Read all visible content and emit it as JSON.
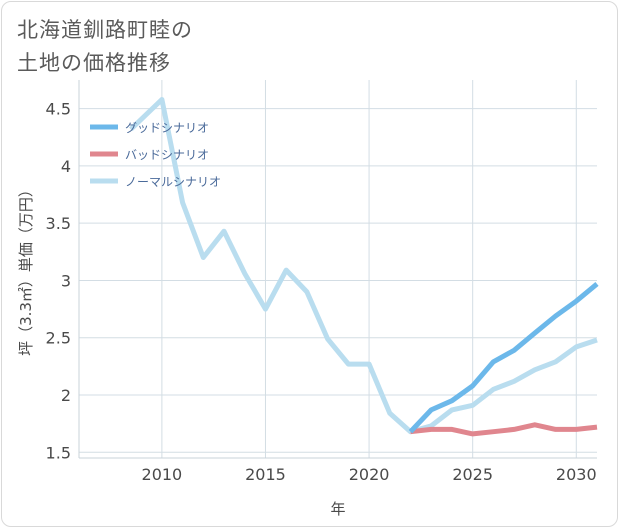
{
  "title_line1": "北海道釧路町睦の",
  "title_line2": "土地の価格推移",
  "chart_data": {
    "type": "line",
    "xlabel": "年",
    "ylabel": "坪（3.3㎡）単価（万円）",
    "xlim": [
      2006,
      2031
    ],
    "ylim": [
      1.45,
      4.75
    ],
    "xticks": [
      2010,
      2015,
      2020,
      2025,
      2030
    ],
    "yticks": [
      1.5,
      2,
      2.5,
      3,
      3.5,
      4,
      4.5
    ],
    "ytick_labels": [
      "1.5",
      "2",
      "2.5",
      "3",
      "3.5",
      "4",
      "4.5"
    ],
    "grid": true,
    "legend_position": "top-left",
    "series": [
      {
        "name": "グッドシナリオ",
        "color": "#6cb8ea",
        "x": [
          2022,
          2023,
          2024,
          2025,
          2026,
          2027,
          2028,
          2029,
          2030,
          2031
        ],
        "y": [
          1.68,
          1.87,
          1.95,
          2.08,
          2.29,
          2.39,
          2.54,
          2.69,
          2.82,
          2.97
        ]
      },
      {
        "name": "バッドシナリオ",
        "color": "#e0868e",
        "x": [
          2022,
          2023,
          2024,
          2025,
          2026,
          2027,
          2028,
          2029,
          2030,
          2031
        ],
        "y": [
          1.68,
          1.7,
          1.7,
          1.66,
          1.68,
          1.7,
          1.74,
          1.7,
          1.7,
          1.72
        ]
      },
      {
        "name": "ノーマルシナリオ",
        "color": "#b9ddef",
        "x": [
          2008.5,
          2010,
          2011,
          2012,
          2013,
          2014,
          2015,
          2016,
          2017,
          2018,
          2019,
          2020,
          2021,
          2022,
          2023,
          2024,
          2025,
          2026,
          2027,
          2028,
          2029,
          2030,
          2031
        ],
        "y": [
          4.32,
          4.58,
          3.68,
          3.2,
          3.43,
          3.06,
          2.75,
          3.09,
          2.9,
          2.49,
          2.27,
          2.27,
          1.84,
          1.68,
          1.73,
          1.87,
          1.91,
          2.05,
          2.12,
          2.22,
          2.29,
          2.42,
          2.48
        ]
      }
    ]
  }
}
